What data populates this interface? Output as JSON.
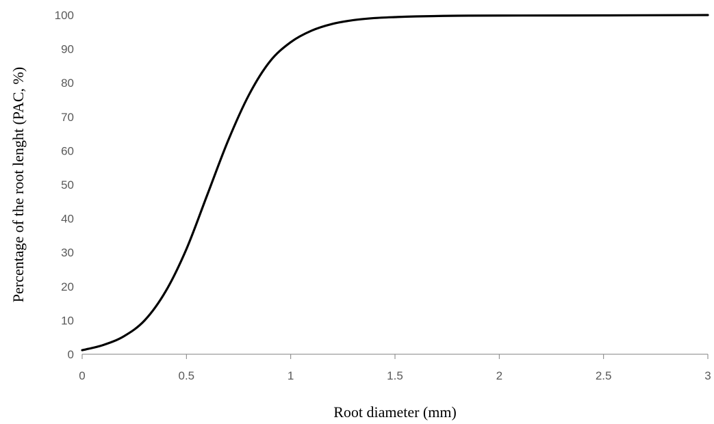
{
  "chart_data": {
    "type": "line",
    "title": "",
    "xlabel": "Root diameter (mm)",
    "ylabel": "Percentage of the root lenght (PAC, %)",
    "xlim": [
      0,
      3
    ],
    "ylim": [
      0,
      100
    ],
    "x_ticks": [
      "0",
      "0.5",
      "1",
      "1.5",
      "2",
      "2.5",
      "3"
    ],
    "y_ticks": [
      "0",
      "10",
      "20",
      "30",
      "40",
      "50",
      "60",
      "70",
      "80",
      "90",
      "100"
    ],
    "grid": false,
    "legend": "none",
    "series": [
      {
        "color": "#000000",
        "x": [
          0,
          0.1,
          0.2,
          0.3,
          0.4,
          0.5,
          0.6,
          0.7,
          0.8,
          0.9,
          1.0,
          1.1,
          1.2,
          1.3,
          1.4,
          1.5,
          1.6,
          1.8,
          2.0,
          2.5,
          3.0
        ],
        "y": [
          1.2,
          2.7,
          5.3,
          10.0,
          18.5,
          31.0,
          47.0,
          63.0,
          76.5,
          86.3,
          92.0,
          95.4,
          97.4,
          98.5,
          99.1,
          99.4,
          99.6,
          99.8,
          99.85,
          99.9,
          100
        ]
      }
    ]
  }
}
